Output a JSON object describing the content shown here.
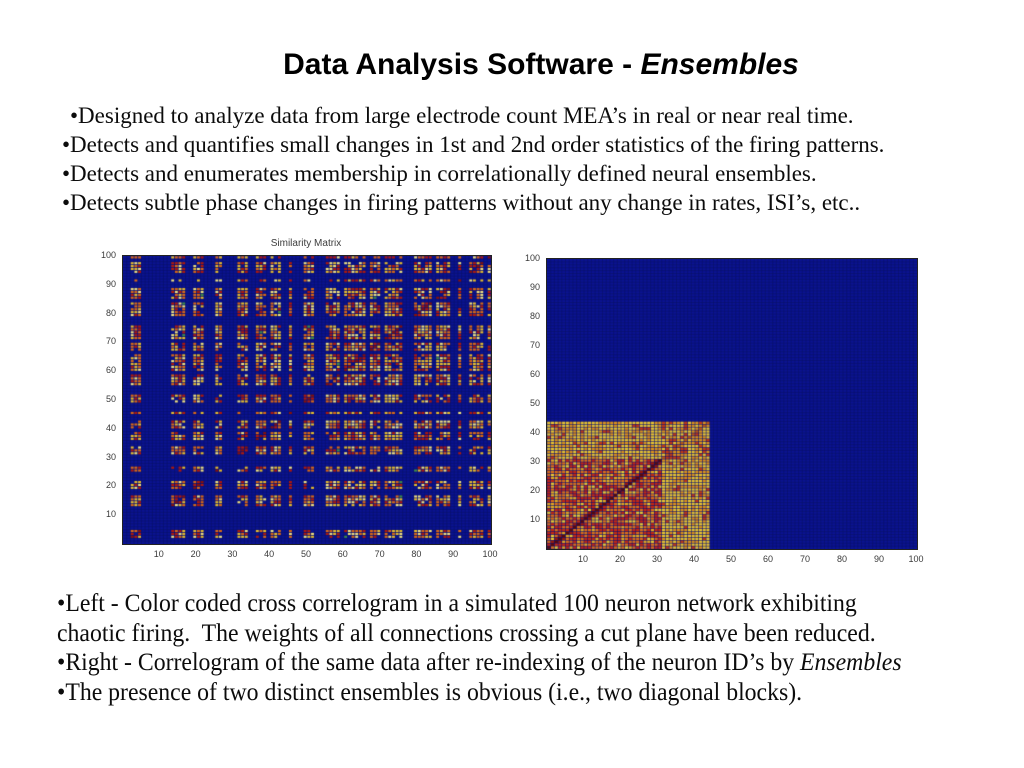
{
  "title": {
    "prefix": "Data Analysis Software - ",
    "emphasis": "Ensembles"
  },
  "top_bullets": {
    "lines": [
      "•Designed to analyze data from large electrode count MEA’s in real or near real time.",
      "•Detects and quantifies small changes in 1st and 2nd order statistics of the firing patterns.",
      "•Detects and enumerates membership in correlationally defined neural ensembles.",
      "•Detects subtle phase changes in firing patterns without any change in rates, ISI’s, etc.."
    ]
  },
  "bottom_bullets": {
    "lines": [
      [
        {
          "t": "•Left - Color coded cross correlogram in a simulated 100 neuron network exhibiting"
        }
      ],
      [
        {
          "t": "chaotic firing.  The weights of all connections crossing a cut plane have been reduced."
        }
      ],
      [
        {
          "t": "•Right - Correlogram of the same data after re-indexing of the neuron ID’s by "
        },
        {
          "t": "Ensembles",
          "italic": true
        }
      ],
      [
        {
          "t": "•The presence of two distinct ensembles is obvious (i.e., two diagonal blocks)."
        }
      ]
    ]
  },
  "chart_data": [
    {
      "type": "heatmap",
      "title": "Similarity Matrix",
      "xlabel": "",
      "ylabel": "",
      "xlim": [
        0,
        100
      ],
      "ylim": [
        0,
        100
      ],
      "x_ticks": [
        10,
        20,
        30,
        40,
        50,
        60,
        70,
        80,
        90,
        100
      ],
      "y_ticks": [
        10,
        20,
        30,
        40,
        50,
        60,
        70,
        80,
        90,
        100
      ],
      "n": 100,
      "seed": 1337,
      "background": "#0b1392",
      "grid_color": "#081066",
      "palette": {
        "red": "#b41a08",
        "orange": "#dd6a12",
        "yellow": "#e9be2a",
        "pale": "#f3e47e",
        "green": "#3f8f46",
        "diag": "#8a1206"
      },
      "active_groups": [
        [
          2,
          4
        ],
        [
          13,
          16
        ],
        [
          19,
          21
        ],
        [
          25,
          26
        ],
        [
          31,
          33
        ],
        [
          36,
          38
        ],
        [
          40,
          42
        ],
        [
          45,
          45
        ],
        [
          49,
          51
        ],
        [
          55,
          58
        ],
        [
          60,
          65
        ],
        [
          67,
          69
        ],
        [
          71,
          75
        ],
        [
          79,
          83
        ],
        [
          85,
          88
        ],
        [
          91,
          91
        ],
        [
          94,
          97
        ],
        [
          99,
          100
        ]
      ]
    },
    {
      "type": "heatmap",
      "title": "",
      "xlabel": "",
      "ylabel": "",
      "xlim": [
        0,
        100
      ],
      "ylim": [
        0,
        100
      ],
      "x_ticks": [
        10,
        20,
        30,
        40,
        50,
        60,
        70,
        80,
        90,
        100
      ],
      "y_ticks": [
        10,
        20,
        30,
        40,
        50,
        60,
        70,
        80,
        90,
        100
      ],
      "n": 100,
      "seed": 4242,
      "background": "#0b1392",
      "grid_color": "#081066",
      "blocks": {
        "outer": {
          "start": 0,
          "end": 44,
          "colors": {
            "red": "#c63a10",
            "orange": "#de9318",
            "yellow": "#e9c42e",
            "diag": "#c05a10"
          }
        },
        "inner": {
          "start": 0,
          "end": 31,
          "colors": {
            "red": "#c62810",
            "orange": "#dd6f16",
            "amber": "#e5a81e",
            "yellow": "#eccb30",
            "diag": "#5f0c00",
            "neardiag": "#a01a06"
          }
        }
      }
    }
  ]
}
